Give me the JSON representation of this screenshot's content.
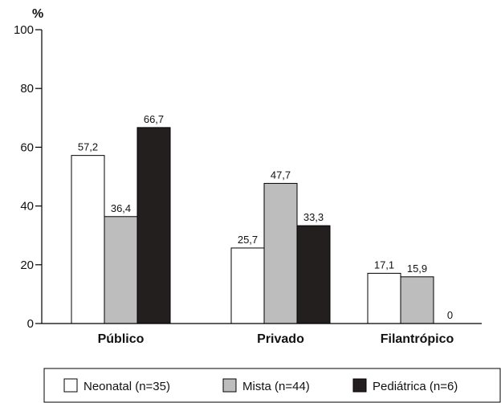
{
  "chart_data": {
    "type": "bar",
    "title": "",
    "xlabel": "",
    "ylabel": "%",
    "ylim": [
      0,
      100
    ],
    "yticks": [
      0,
      20,
      40,
      60,
      80,
      100
    ],
    "grid": false,
    "legend_position": "bottom",
    "categories": [
      "Público",
      "Privado",
      "Filantrópico"
    ],
    "series": [
      {
        "name": "Neonatal (n=35)",
        "color": "#ffffff",
        "values": [
          57.2,
          25.7,
          17.1
        ],
        "labels": [
          "57,2",
          "25,7",
          "17,1"
        ]
      },
      {
        "name": "Mista (n=44)",
        "color": "#bdbdbd",
        "values": [
          36.4,
          47.7,
          15.9
        ],
        "labels": [
          "36,4",
          "47,7",
          "15,9"
        ]
      },
      {
        "name": "Pediátrica (n=6)",
        "color": "#231f1e",
        "values": [
          66.7,
          33.3,
          0
        ],
        "labels": [
          "66,7",
          "33,3",
          "0"
        ]
      }
    ]
  }
}
